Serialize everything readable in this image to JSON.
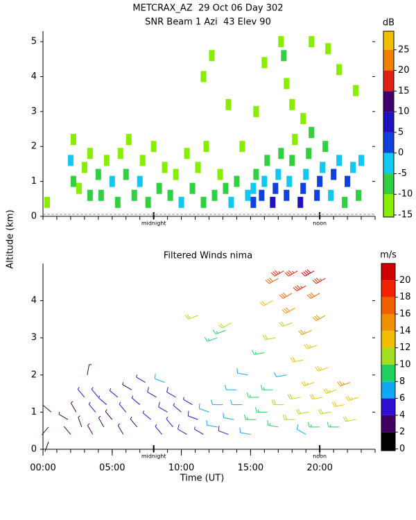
{
  "title": "METCRAX_AZ  29 Oct 06 Day 302",
  "y_label": "Altitude (km)",
  "chart_data": [
    {
      "type": "heatmap",
      "title": "SNR Beam 1 Azi  43 Elev 90",
      "xlim": [
        0,
        24
      ],
      "ylim": [
        0,
        5.3
      ],
      "yticks": [
        0,
        1,
        2,
        3,
        4,
        5
      ],
      "minor_xticks": [
        0,
        1,
        2,
        3,
        4,
        5,
        6,
        7,
        8,
        9,
        10,
        11,
        12,
        13,
        14,
        15,
        16,
        17,
        18,
        19,
        20,
        21,
        22,
        23,
        24
      ],
      "annotations": [
        {
          "text": "midnight",
          "x": 8
        },
        {
          "text": "noon",
          "x": 20
        }
      ],
      "colorbar_label": "dB",
      "clim": [
        -15.5,
        29.5
      ],
      "cticks": [
        -15,
        -10,
        -5,
        0,
        5,
        10,
        15,
        20,
        25
      ],
      "colors": [
        "#88ee00",
        "#30d040",
        "#10c8f0",
        "#1040e0",
        "#2010c0",
        "#400070",
        "#e02010",
        "#f08000",
        "#f0c000"
      ],
      "x": [
        0.3,
        2.2,
        2.2,
        2.0,
        2.6,
        3.0,
        3.4,
        3.4,
        4.0,
        4.2,
        4.6,
        5.0,
        5.4,
        5.6,
        6.0,
        6.2,
        6.6,
        7.0,
        7.2,
        7.6,
        8.0,
        8.4,
        8.8,
        9.2,
        9.6,
        10.0,
        10.4,
        10.8,
        11.2,
        11.6,
        11.8,
        12.4,
        12.8,
        13.2,
        13.6,
        14.0,
        14.4,
        14.8,
        15.2,
        15.2,
        15.4,
        15.8,
        16.0,
        16.2,
        16.6,
        16.8,
        17.0,
        17.2,
        17.6,
        17.8,
        18.0,
        18.2,
        18.6,
        18.8,
        19.0,
        19.2,
        19.4,
        19.8,
        20.0,
        20.2,
        20.4,
        20.8,
        21.0,
        21.4,
        21.8,
        22.0,
        22.4,
        22.8,
        23.0,
        15.4,
        16.0,
        17.2,
        17.4,
        17.6,
        18.0,
        18.8,
        19.4,
        20.6,
        21.4,
        22.6,
        13.4,
        11.6,
        12.2
      ],
      "y": [
        0.4,
        1.0,
        2.2,
        1.6,
        0.8,
        1.4,
        0.6,
        1.8,
        1.2,
        0.6,
        1.6,
        1.0,
        0.4,
        1.8,
        1.2,
        2.2,
        0.6,
        1.0,
        1.6,
        0.4,
        2.0,
        0.8,
        1.4,
        0.6,
        1.2,
        0.4,
        1.8,
        0.8,
        1.4,
        0.4,
        2.0,
        0.6,
        1.2,
        0.8,
        0.4,
        1.0,
        2.0,
        0.6,
        0.4,
        0.8,
        1.2,
        0.6,
        1.0,
        1.6,
        0.4,
        0.8,
        1.2,
        1.8,
        0.6,
        1.0,
        1.6,
        2.2,
        0.4,
        0.8,
        1.2,
        1.8,
        2.4,
        0.6,
        1.0,
        1.4,
        2.0,
        0.6,
        1.2,
        1.6,
        0.4,
        1.0,
        1.4,
        0.6,
        1.6,
        3.0,
        4.4,
        5.0,
        4.6,
        3.8,
        3.2,
        2.8,
        5.0,
        4.8,
        4.2,
        3.6,
        3.2,
        4.0,
        4.6
      ],
      "values": [
        -12,
        -10,
        -13,
        -3,
        -11,
        -12,
        -8,
        -12,
        -8,
        -10,
        -12,
        -5,
        -9,
        -13,
        -7,
        -12,
        -6,
        -4,
        -12,
        -8,
        -12,
        -7,
        -11,
        -10,
        -12,
        -3,
        -13,
        -9,
        -11,
        -6,
        -13,
        -9,
        -12,
        -7,
        -4,
        -10,
        -12,
        -5,
        1,
        -3,
        -8,
        3,
        -2,
        -10,
        5,
        2,
        -4,
        -9,
        4,
        -1,
        -6,
        -11,
        6,
        3,
        -3,
        -6,
        -10,
        4,
        0,
        -4,
        -8,
        -2,
        2,
        -4,
        -6,
        3,
        -3,
        -8,
        -5,
        -13,
        -12,
        -13,
        -6,
        -11,
        -12,
        -11,
        -12,
        -13,
        -12,
        -13,
        -13,
        -13,
        -13
      ]
    },
    {
      "type": "barbs",
      "title": "Filtered Winds nima",
      "x_label": "Time (UT)",
      "xlim": [
        0,
        24
      ],
      "ylim": [
        0,
        5
      ],
      "yticks": [
        0,
        1,
        2,
        3,
        4
      ],
      "xticks": [
        {
          "value": 0,
          "label": "00:00"
        },
        {
          "value": 5,
          "label": "05:00"
        },
        {
          "value": 10,
          "label": "10:00"
        },
        {
          "value": 15,
          "label": "15:00"
        },
        {
          "value": 20,
          "label": "20:00"
        }
      ],
      "minor_xticks": [
        0,
        1,
        2,
        3,
        4,
        5,
        6,
        7,
        8,
        9,
        10,
        11,
        12,
        13,
        14,
        15,
        16,
        17,
        18,
        19,
        20,
        21,
        22,
        23,
        24
      ],
      "annotations": [
        {
          "text": "midnight",
          "x": 8
        },
        {
          "text": "noon",
          "x": 20
        }
      ],
      "colorbar_label": "m/s",
      "clim": [
        -0.2,
        22
      ],
      "cticks": [
        0,
        2,
        4,
        6,
        8,
        10,
        12,
        14,
        16,
        18,
        20
      ],
      "colors": [
        "#000000",
        "#400060",
        "#3010d0",
        "#10a8f0",
        "#20d060",
        "#a0e020",
        "#f0c000",
        "#f09000",
        "#f06000",
        "#f02000",
        "#d00000"
      ],
      "x": [
        0.4,
        0.4,
        0.6,
        1.8,
        2.0,
        2.4,
        2.8,
        3.0,
        3.2,
        3.6,
        3.8,
        4.0,
        4.4,
        4.6,
        5.0,
        5.4,
        5.8,
        6.0,
        6.4,
        6.8,
        7.0,
        7.4,
        7.8,
        8.2,
        8.6,
        8.8,
        9.0,
        9.4,
        9.6,
        10.0,
        10.4,
        10.8,
        11.2,
        11.6,
        12.0,
        12.6,
        13.0,
        13.4,
        13.8,
        14.0,
        14.4,
        14.8,
        15.0,
        15.4,
        15.6,
        16.0,
        16.2,
        16.6,
        16.8,
        17.0,
        17.4,
        17.6,
        18.0,
        18.2,
        18.6,
        18.8,
        19.0,
        19.2,
        19.6,
        19.8,
        20.0,
        20.2,
        20.6,
        20.8,
        21.2,
        21.4,
        21.8,
        22.2,
        22.6,
        22.8,
        12.6,
        13.2,
        13.6,
        11.2,
        16.6,
        17.0,
        17.4,
        18.0,
        18.4,
        19.0,
        19.6,
        20.0,
        20.4,
        18.2,
        19.4,
        20.4
      ],
      "y": [
        0.2,
        0.6,
        1.0,
        0.8,
        0.4,
        1.0,
        0.6,
        1.4,
        2.0,
        0.4,
        1.0,
        1.4,
        0.6,
        1.2,
        0.8,
        1.4,
        0.4,
        1.0,
        1.6,
        0.6,
        1.2,
        1.8,
        0.8,
        1.4,
        0.4,
        1.8,
        1.0,
        0.6,
        1.4,
        1.0,
        0.4,
        1.2,
        0.8,
        0.4,
        1.0,
        0.6,
        1.2,
        0.4,
        0.8,
        1.6,
        1.2,
        2.0,
        0.4,
        0.8,
        1.4,
        2.6,
        1.0,
        1.6,
        3.0,
        0.6,
        1.2,
        2.0,
        3.4,
        0.8,
        1.4,
        2.4,
        0.4,
        1.0,
        1.8,
        2.8,
        0.6,
        1.4,
        2.2,
        1.0,
        1.6,
        0.6,
        1.2,
        1.8,
        0.8,
        1.4,
        3.0,
        3.2,
        3.4,
        3.6,
        4.0,
        4.6,
        4.8,
        4.2,
        4.8,
        4.4,
        4.8,
        4.2,
        4.6,
        3.8,
        3.2,
        3.6
      ],
      "speed": [
        1,
        2,
        2,
        3,
        2,
        3,
        3,
        4,
        3,
        3,
        4,
        4,
        3,
        4,
        3,
        4,
        3,
        4,
        3,
        3,
        4,
        4,
        4,
        5,
        4,
        6,
        5,
        4,
        5,
        4,
        5,
        4,
        5,
        4,
        6,
        6,
        7,
        5,
        6,
        7,
        7,
        7,
        6,
        8,
        8,
        8,
        8,
        9,
        10,
        9,
        10,
        7,
        11,
        10,
        11,
        12,
        6,
        11,
        13,
        13,
        9,
        12,
        13,
        10,
        13,
        9,
        12,
        14,
        11,
        13,
        8,
        9,
        10,
        10,
        12,
        16,
        19,
        16,
        19,
        18,
        20,
        17,
        19,
        15,
        14,
        15
      ],
      "direction": [
        200,
        220,
        310,
        300,
        320,
        330,
        340,
        320,
        10,
        330,
        320,
        320,
        330,
        310,
        320,
        310,
        330,
        320,
        300,
        320,
        310,
        300,
        310,
        300,
        320,
        290,
        300,
        320,
        300,
        310,
        300,
        300,
        290,
        300,
        290,
        280,
        270,
        290,
        280,
        270,
        270,
        280,
        280,
        270,
        270,
        260,
        270,
        270,
        260,
        280,
        270,
        260,
        250,
        270,
        260,
        260,
        300,
        260,
        250,
        250,
        270,
        260,
        250,
        260,
        250,
        270,
        260,
        250,
        260,
        250,
        250,
        250,
        240,
        250,
        240,
        240,
        240,
        240,
        240,
        240,
        240,
        240,
        240,
        240,
        245,
        240
      ]
    }
  ]
}
